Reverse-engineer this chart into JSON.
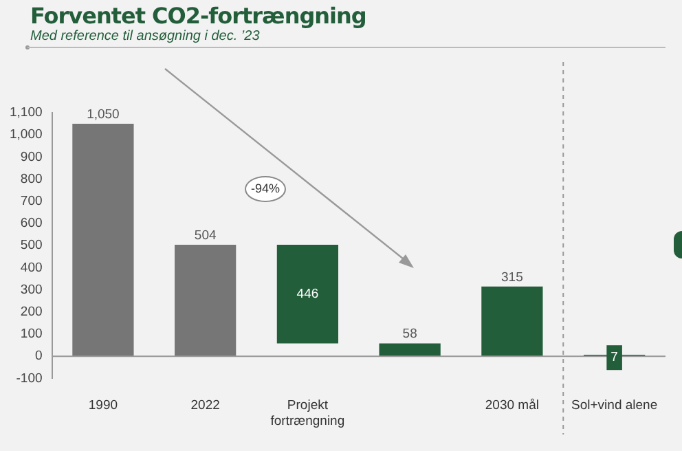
{
  "chart_data": {
    "type": "bar",
    "title": "Forventet CO2-fortrængning",
    "subtitle": "Med reference til ansøgning i dec. ’23",
    "categories": [
      "1990",
      "2022",
      "Projekt fortrængning",
      null,
      "2030 mål",
      "Sol+vind alene"
    ],
    "values": [
      1050,
      504,
      446,
      58,
      315,
      7
    ],
    "base": [
      0,
      0,
      58,
      0,
      0,
      0
    ],
    "colors": [
      "#767676",
      "#767676",
      "#235e3b",
      "#235e3b",
      "#235e3b",
      "#235e3b"
    ],
    "value_labels": [
      "1,050",
      "504",
      "446",
      "58",
      "315",
      "7"
    ],
    "ylim": [
      -100,
      1100
    ],
    "yticks": [
      {
        "value": -100,
        "label": "-100"
      },
      0,
      100,
      200,
      300,
      400,
      500,
      600,
      700,
      800,
      900,
      {
        "value": 1000,
        "label": "1,000"
      },
      {
        "value": 1100,
        "label": "1,100"
      }
    ],
    "annotations": [
      "-94%"
    ],
    "ref_lines": [
      {
        "axis": "x",
        "value": "Sol+vind alene",
        "color": "#999999",
        "line_style": "dashed"
      }
    ],
    "legend": false,
    "grid": false
  }
}
